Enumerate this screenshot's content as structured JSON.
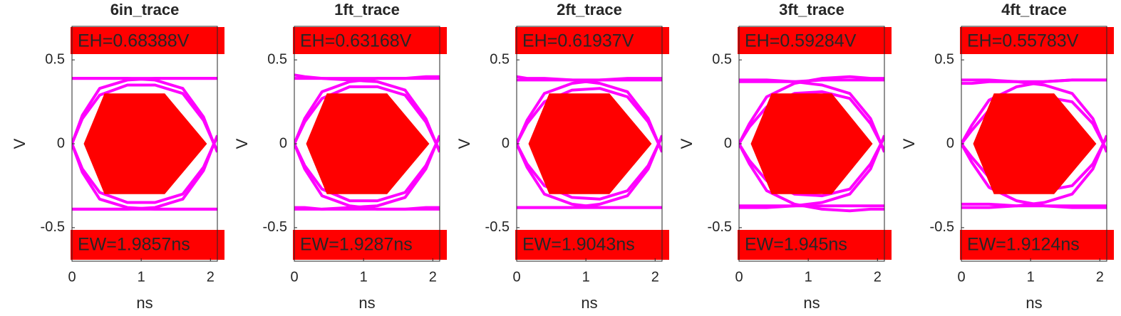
{
  "chart_data": [
    {
      "type": "eye",
      "title": "6in_trace",
      "xlabel": "ns",
      "ylabel": "V",
      "annotations": [
        "EH=0.68388V",
        "EW=1.9857ns"
      ],
      "xlim": [
        0,
        2.1
      ],
      "ylim": [
        -0.7,
        0.7
      ],
      "xticks": [
        0,
        1,
        2
      ],
      "yticks": [
        -0.5,
        0,
        0.5
      ],
      "color": "#ff00ff",
      "x": [
        0,
        0.15,
        0.4,
        0.8,
        1.2,
        1.6,
        1.9,
        2.05,
        2.1
      ],
      "series": [
        {
          "values": [
            0.39,
            0.39,
            0.39,
            0.39,
            0.39,
            0.39,
            0.39,
            0.39,
            0.39
          ]
        },
        {
          "values": [
            -0.39,
            -0.39,
            -0.39,
            -0.39,
            -0.39,
            -0.39,
            -0.39,
            -0.39,
            -0.39
          ]
        },
        {
          "values": [
            0,
            0.15,
            0.29,
            0.35,
            0.35,
            0.3,
            0.14,
            0,
            -0.04
          ]
        },
        {
          "values": [
            0,
            -0.15,
            -0.29,
            -0.35,
            -0.35,
            -0.3,
            -0.14,
            0,
            0.04
          ]
        },
        {
          "values": [
            0,
            0.17,
            0.33,
            0.38,
            0.39,
            0.39,
            0.39,
            0.39,
            0.39
          ]
        },
        {
          "values": [
            0,
            -0.17,
            -0.33,
            -0.38,
            -0.39,
            -0.39,
            -0.39,
            -0.39,
            -0.39
          ]
        },
        {
          "values": [
            0.39,
            0.39,
            0.39,
            0.39,
            0.38,
            0.33,
            0.16,
            0,
            -0.05
          ]
        },
        {
          "values": [
            -0.39,
            -0.39,
            -0.39,
            -0.39,
            -0.38,
            -0.33,
            -0.16,
            0,
            0.05
          ]
        }
      ],
      "mask": {
        "x": [
          0.17,
          0.47,
          1.34,
          1.95,
          1.34,
          0.47
        ],
        "y": [
          0,
          0.3,
          0.3,
          0,
          -0.3,
          -0.3
        ],
        "color": "#ff0000"
      }
    },
    {
      "type": "eye",
      "title": "1ft_trace",
      "xlabel": "ns",
      "ylabel": "V",
      "annotations": [
        "EH=0.63168V",
        "EW=1.9287ns"
      ],
      "xlim": [
        0,
        2.1
      ],
      "ylim": [
        -0.7,
        0.7
      ],
      "xticks": [
        0,
        1,
        2
      ],
      "yticks": [
        -0.5,
        0,
        0.5
      ],
      "color": "#ff00ff",
      "x": [
        0,
        0.15,
        0.4,
        0.8,
        1.2,
        1.6,
        1.9,
        2.05,
        2.1
      ],
      "series": [
        {
          "values": [
            0.41,
            0.4,
            0.39,
            0.39,
            0.39,
            0.39,
            0.4,
            0.4,
            0.4
          ]
        },
        {
          "values": [
            -0.38,
            -0.38,
            -0.39,
            -0.39,
            -0.39,
            -0.39,
            -0.38,
            -0.38,
            -0.38
          ]
        },
        {
          "values": [
            0,
            0.13,
            0.27,
            0.34,
            0.34,
            0.29,
            0.13,
            0,
            -0.04
          ]
        },
        {
          "values": [
            0,
            -0.13,
            -0.27,
            -0.34,
            -0.34,
            -0.29,
            -0.13,
            0,
            0.04
          ]
        },
        {
          "values": [
            0,
            0.15,
            0.31,
            0.37,
            0.39,
            0.39,
            0.39,
            0.39,
            0.39
          ]
        },
        {
          "values": [
            0,
            -0.15,
            -0.31,
            -0.37,
            -0.39,
            -0.39,
            -0.39,
            -0.39,
            -0.39
          ]
        },
        {
          "values": [
            0.39,
            0.39,
            0.39,
            0.38,
            0.37,
            0.32,
            0.15,
            0,
            -0.05
          ]
        },
        {
          "values": [
            -0.39,
            -0.39,
            -0.39,
            -0.38,
            -0.37,
            -0.32,
            -0.15,
            0,
            0.05
          ]
        }
      ],
      "mask": {
        "x": [
          0.17,
          0.47,
          1.34,
          1.95,
          1.34,
          0.47
        ],
        "y": [
          0,
          0.3,
          0.3,
          0,
          -0.3,
          -0.3
        ],
        "color": "#ff0000"
      }
    },
    {
      "type": "eye",
      "title": "2ft_trace",
      "xlabel": "ns",
      "ylabel": "V",
      "annotations": [
        "EH=0.61937V",
        "EW=1.9043ns"
      ],
      "xlim": [
        0,
        2.1
      ],
      "ylim": [
        -0.7,
        0.7
      ],
      "xticks": [
        0,
        1,
        2
      ],
      "yticks": [
        -0.5,
        0,
        0.5
      ],
      "color": "#ff00ff",
      "x": [
        0,
        0.15,
        0.4,
        0.8,
        1.2,
        1.6,
        1.9,
        2.05,
        2.1
      ],
      "series": [
        {
          "values": [
            0.4,
            0.39,
            0.39,
            0.38,
            0.38,
            0.39,
            0.39,
            0.39,
            0.39
          ]
        },
        {
          "values": [
            -0.38,
            -0.38,
            -0.38,
            -0.38,
            -0.38,
            -0.38,
            -0.38,
            -0.38,
            -0.38
          ]
        },
        {
          "values": [
            0,
            0.12,
            0.25,
            0.32,
            0.33,
            0.28,
            0.13,
            0,
            -0.04
          ]
        },
        {
          "values": [
            0,
            -0.12,
            -0.25,
            -0.32,
            -0.33,
            -0.28,
            -0.13,
            0,
            0.04
          ]
        },
        {
          "values": [
            0,
            0.14,
            0.3,
            0.36,
            0.38,
            0.38,
            0.38,
            0.38,
            0.38
          ]
        },
        {
          "values": [
            0,
            -0.14,
            -0.3,
            -0.36,
            -0.38,
            -0.38,
            -0.38,
            -0.38,
            -0.38
          ]
        },
        {
          "values": [
            0.38,
            0.38,
            0.38,
            0.38,
            0.36,
            0.31,
            0.15,
            0,
            -0.05
          ]
        },
        {
          "values": [
            -0.38,
            -0.38,
            -0.38,
            -0.38,
            -0.36,
            -0.31,
            -0.15,
            0,
            0.05
          ]
        }
      ],
      "mask": {
        "x": [
          0.17,
          0.47,
          1.34,
          1.95,
          1.34,
          0.47
        ],
        "y": [
          0,
          0.3,
          0.3,
          0,
          -0.3,
          -0.3
        ],
        "color": "#ff0000"
      }
    },
    {
      "type": "eye",
      "title": "3ft_trace",
      "xlabel": "ns",
      "ylabel": "V",
      "annotations": [
        "EH=0.59284V",
        "EW=1.945ns"
      ],
      "xlim": [
        0,
        2.1
      ],
      "ylim": [
        -0.7,
        0.7
      ],
      "xticks": [
        0,
        1,
        2
      ],
      "yticks": [
        -0.5,
        0,
        0.5
      ],
      "color": "#ff00ff",
      "x": [
        0,
        0.15,
        0.4,
        0.8,
        1.2,
        1.6,
        1.9,
        2.05,
        2.1
      ],
      "series": [
        {
          "values": [
            0.37,
            0.37,
            0.37,
            0.37,
            0.38,
            0.38,
            0.38,
            0.38,
            0.38
          ]
        },
        {
          "values": [
            -0.37,
            -0.37,
            -0.37,
            -0.37,
            -0.37,
            -0.37,
            -0.37,
            -0.37,
            -0.37
          ]
        },
        {
          "values": [
            0,
            0.1,
            0.22,
            0.3,
            0.31,
            0.27,
            0.12,
            0,
            -0.04
          ]
        },
        {
          "values": [
            0,
            -0.1,
            -0.22,
            -0.3,
            -0.31,
            -0.27,
            -0.12,
            0,
            0.04
          ]
        },
        {
          "values": [
            0,
            0.12,
            0.28,
            0.36,
            0.39,
            0.4,
            0.39,
            0.39,
            0.39
          ]
        },
        {
          "values": [
            0,
            -0.12,
            -0.28,
            -0.36,
            -0.39,
            -0.4,
            -0.39,
            -0.39,
            -0.39
          ]
        },
        {
          "values": [
            0.38,
            0.38,
            0.38,
            0.37,
            0.35,
            0.3,
            0.15,
            0,
            -0.05
          ]
        },
        {
          "values": [
            -0.38,
            -0.38,
            -0.38,
            -0.37,
            -0.35,
            -0.3,
            -0.15,
            0,
            0.05
          ]
        }
      ],
      "mask": {
        "x": [
          0.17,
          0.47,
          1.34,
          1.93,
          1.34,
          0.47
        ],
        "y": [
          0,
          0.3,
          0.3,
          0,
          -0.3,
          -0.3
        ],
        "color": "#ff0000"
      }
    },
    {
      "type": "eye",
      "title": "4ft_trace",
      "xlabel": "ns",
      "ylabel": "V",
      "annotations": [
        "EH=0.55783V",
        "EW=1.9124ns"
      ],
      "xlim": [
        0,
        2.1
      ],
      "ylim": [
        -0.7,
        0.7
      ],
      "xticks": [
        0,
        1,
        2
      ],
      "yticks": [
        -0.5,
        0,
        0.5
      ],
      "color": "#ff00ff",
      "x": [
        0,
        0.15,
        0.4,
        0.8,
        1.2,
        1.6,
        1.9,
        2.05,
        2.1
      ],
      "series": [
        {
          "values": [
            0.36,
            0.36,
            0.37,
            0.37,
            0.37,
            0.38,
            0.38,
            0.38,
            0.38
          ]
        },
        {
          "values": [
            -0.36,
            -0.36,
            -0.36,
            -0.37,
            -0.37,
            -0.37,
            -0.37,
            -0.37,
            -0.37
          ]
        },
        {
          "values": [
            0,
            0.08,
            0.2,
            0.27,
            0.28,
            0.25,
            0.12,
            0,
            -0.04
          ]
        },
        {
          "values": [
            0,
            -0.08,
            -0.2,
            -0.27,
            -0.28,
            -0.25,
            -0.12,
            0,
            0.04
          ]
        },
        {
          "values": [
            0,
            0.11,
            0.26,
            0.34,
            0.37,
            0.38,
            0.38,
            0.38,
            0.38
          ]
        },
        {
          "values": [
            0,
            -0.11,
            -0.26,
            -0.34,
            -0.37,
            -0.38,
            -0.38,
            -0.38,
            -0.38
          ]
        },
        {
          "values": [
            0.38,
            0.38,
            0.38,
            0.37,
            0.35,
            0.3,
            0.15,
            0,
            -0.05
          ]
        },
        {
          "values": [
            -0.38,
            -0.38,
            -0.38,
            -0.37,
            -0.35,
            -0.3,
            -0.15,
            0,
            0.05
          ]
        }
      ],
      "mask": {
        "x": [
          0.17,
          0.47,
          1.34,
          1.95,
          1.34,
          0.47
        ],
        "y": [
          0,
          0.3,
          0.3,
          0,
          -0.3,
          -0.3
        ],
        "color": "#ff0000"
      }
    }
  ]
}
